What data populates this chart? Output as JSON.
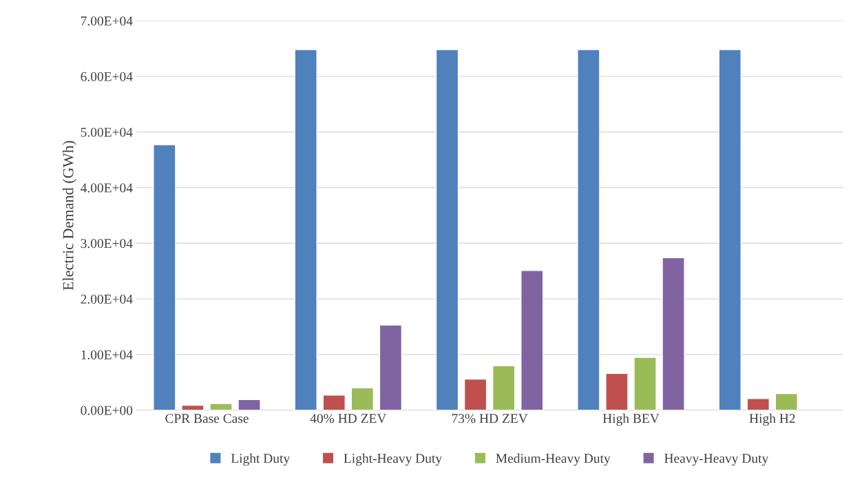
{
  "chart_data": {
    "type": "bar",
    "ylabel": "Electric Demand (GWh)",
    "categories": [
      "CPR Base Case",
      "40% HD ZEV",
      "73% HD ZEV",
      "High BEV",
      "High H2"
    ],
    "series": [
      {
        "name": "Light Duty",
        "color": "#4f81bd",
        "values": [
          47700,
          64800,
          64800,
          64800,
          64800
        ]
      },
      {
        "name": "Light-Heavy Duty",
        "color": "#c0504d",
        "values": [
          900,
          2700,
          5600,
          6600,
          2100
        ]
      },
      {
        "name": "Medium-Heavy Duty",
        "color": "#9bbb59",
        "values": [
          1200,
          4000,
          8000,
          9500,
          3000
        ]
      },
      {
        "name": "Heavy-Heavy Duty",
        "color": "#8064a2",
        "values": [
          1900,
          15300,
          25100,
          27400,
          null
        ]
      }
    ],
    "ylim": [
      0,
      70000
    ],
    "yticks": [
      {
        "value": 0,
        "label": "0.00E+00"
      },
      {
        "value": 10000,
        "label": "1.00E+04"
      },
      {
        "value": 20000,
        "label": "2.00E+04"
      },
      {
        "value": 30000,
        "label": "3.00E+04"
      },
      {
        "value": 40000,
        "label": "4.00E+04"
      },
      {
        "value": 50000,
        "label": "5.00E+04"
      },
      {
        "value": 60000,
        "label": "6.00E+04"
      },
      {
        "value": 70000,
        "label": "7.00E+04"
      }
    ],
    "grid": "y",
    "legend": "bottom"
  }
}
